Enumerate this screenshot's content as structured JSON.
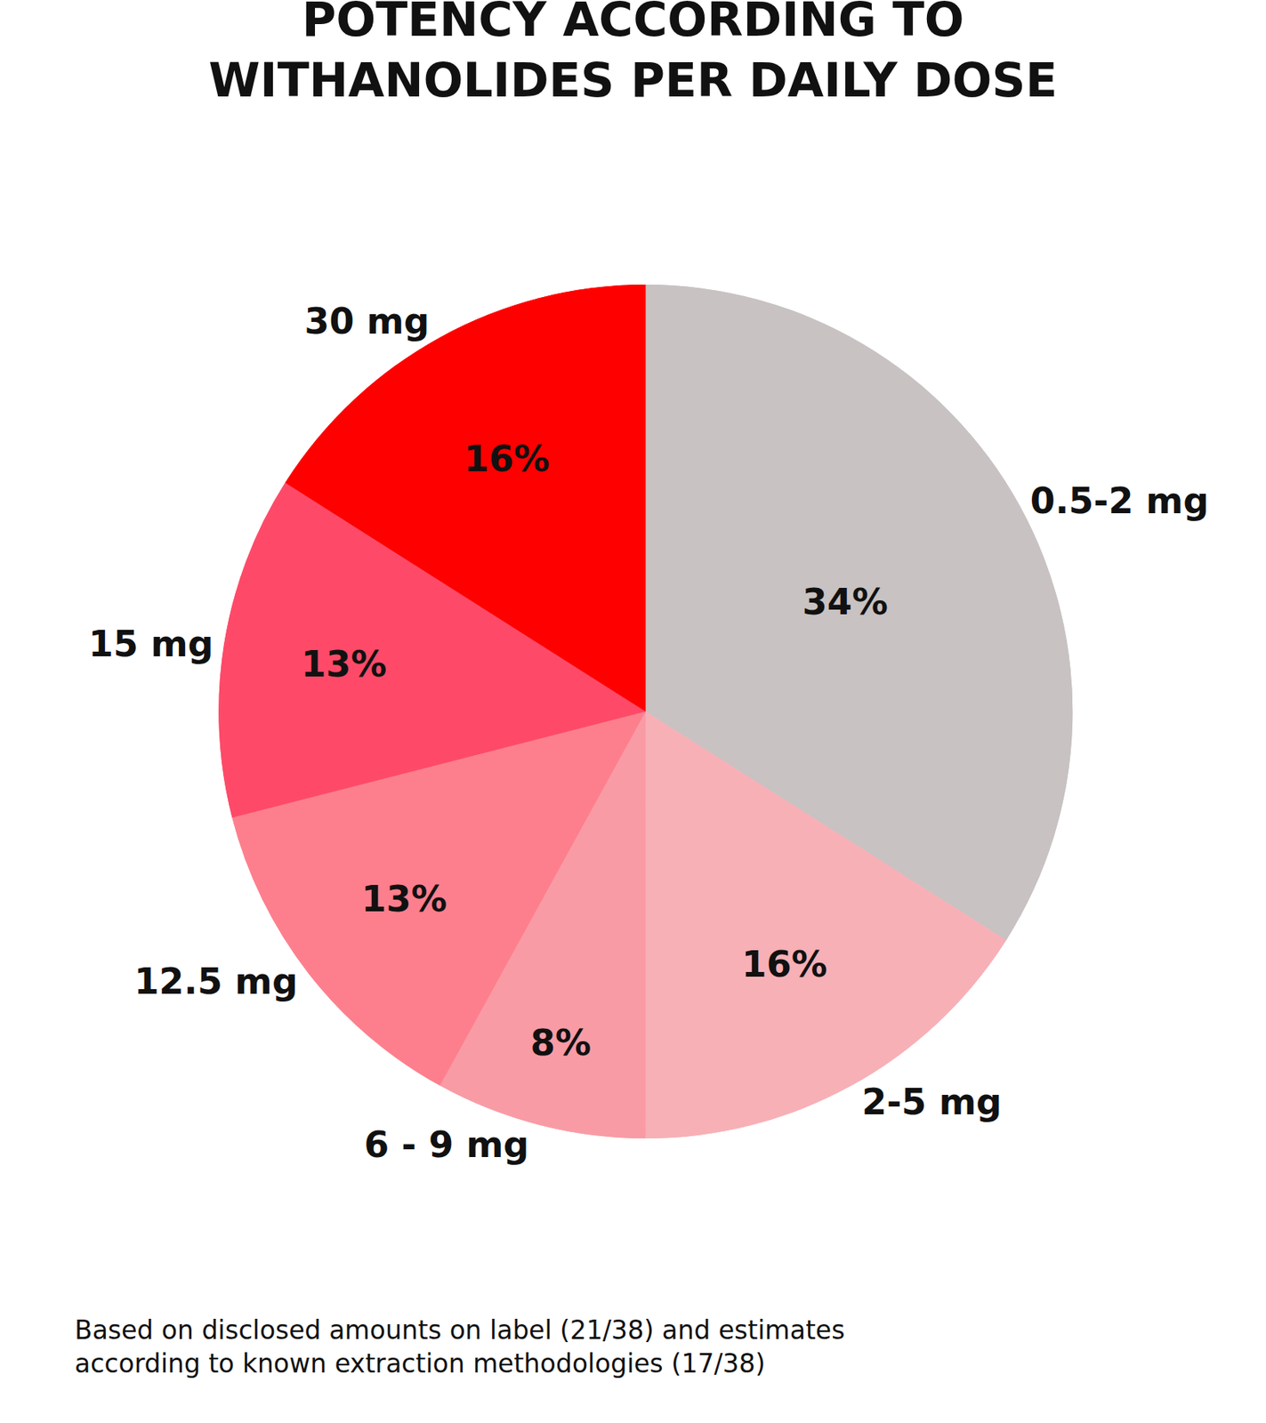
{
  "chart_data": {
    "type": "pie",
    "title": "POTENCY ACCORDING TO WITHANOLIDES PER DAILY DOSE",
    "categories": [
      "0.5-2 mg",
      "2-5 mg",
      "6 - 9 mg",
      "12.5 mg",
      "15 mg",
      "30 mg"
    ],
    "values": [
      34,
      16,
      8,
      13,
      13,
      16
    ],
    "value_labels": [
      "34%",
      "16%",
      "8%",
      "13%",
      "13%",
      "16%"
    ],
    "colors": [
      "#c8c2c2",
      "#f7b0b6",
      "#f99ba5",
      "#fd7f8d",
      "#fe4a68",
      "#ff0000"
    ],
    "data_labels": true,
    "annotations": [
      "Based on disclosed amounts on label (21/38) and estimates according to known extraction methodologies (17/38)"
    ]
  }
}
